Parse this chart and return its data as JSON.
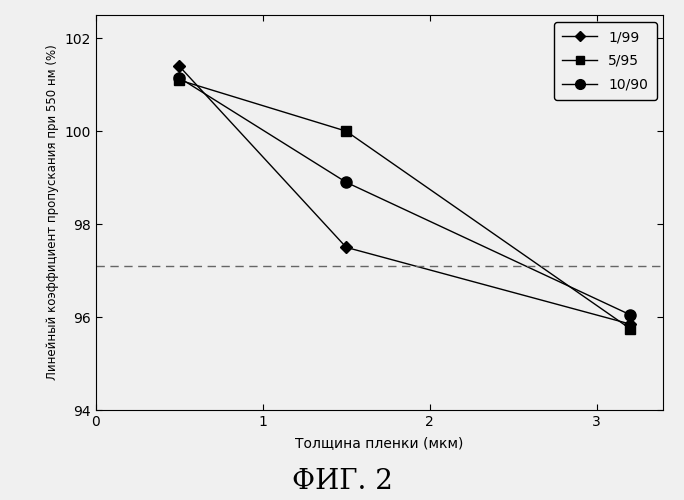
{
  "series": [
    {
      "label": "1/99",
      "x": [
        0.5,
        1.5,
        3.2
      ],
      "y": [
        101.4,
        97.5,
        95.85
      ],
      "marker": "D",
      "markersize": 6
    },
    {
      "label": "5/95",
      "x": [
        0.5,
        1.5,
        3.2
      ],
      "y": [
        101.1,
        100.0,
        95.75
      ],
      "marker": "s",
      "markersize": 7
    },
    {
      "label": "10/90",
      "x": [
        0.5,
        1.5,
        3.2
      ],
      "y": [
        101.15,
        98.9,
        96.05
      ],
      "marker": "o",
      "markersize": 8
    }
  ],
  "dashed_line_y": 97.1,
  "xlim": [
    0,
    3.4
  ],
  "ylim": [
    94,
    102.5
  ],
  "xticks": [
    0,
    1,
    2,
    3
  ],
  "yticks": [
    94,
    96,
    98,
    100,
    102
  ],
  "xlabel": "Толщина пленки (мкм)",
  "ylabel": "Линейный коэффициент пропускания при 550 нм (%)",
  "figure_label": "ФИГ. 2",
  "bg_color": "#f0f0f0",
  "line_color": "#000000",
  "dashed_color": "#666666",
  "ylabel_fontsize": 8.5,
  "xlabel_fontsize": 10,
  "tick_fontsize": 10,
  "legend_fontsize": 10,
  "figure_label_fontsize": 20
}
